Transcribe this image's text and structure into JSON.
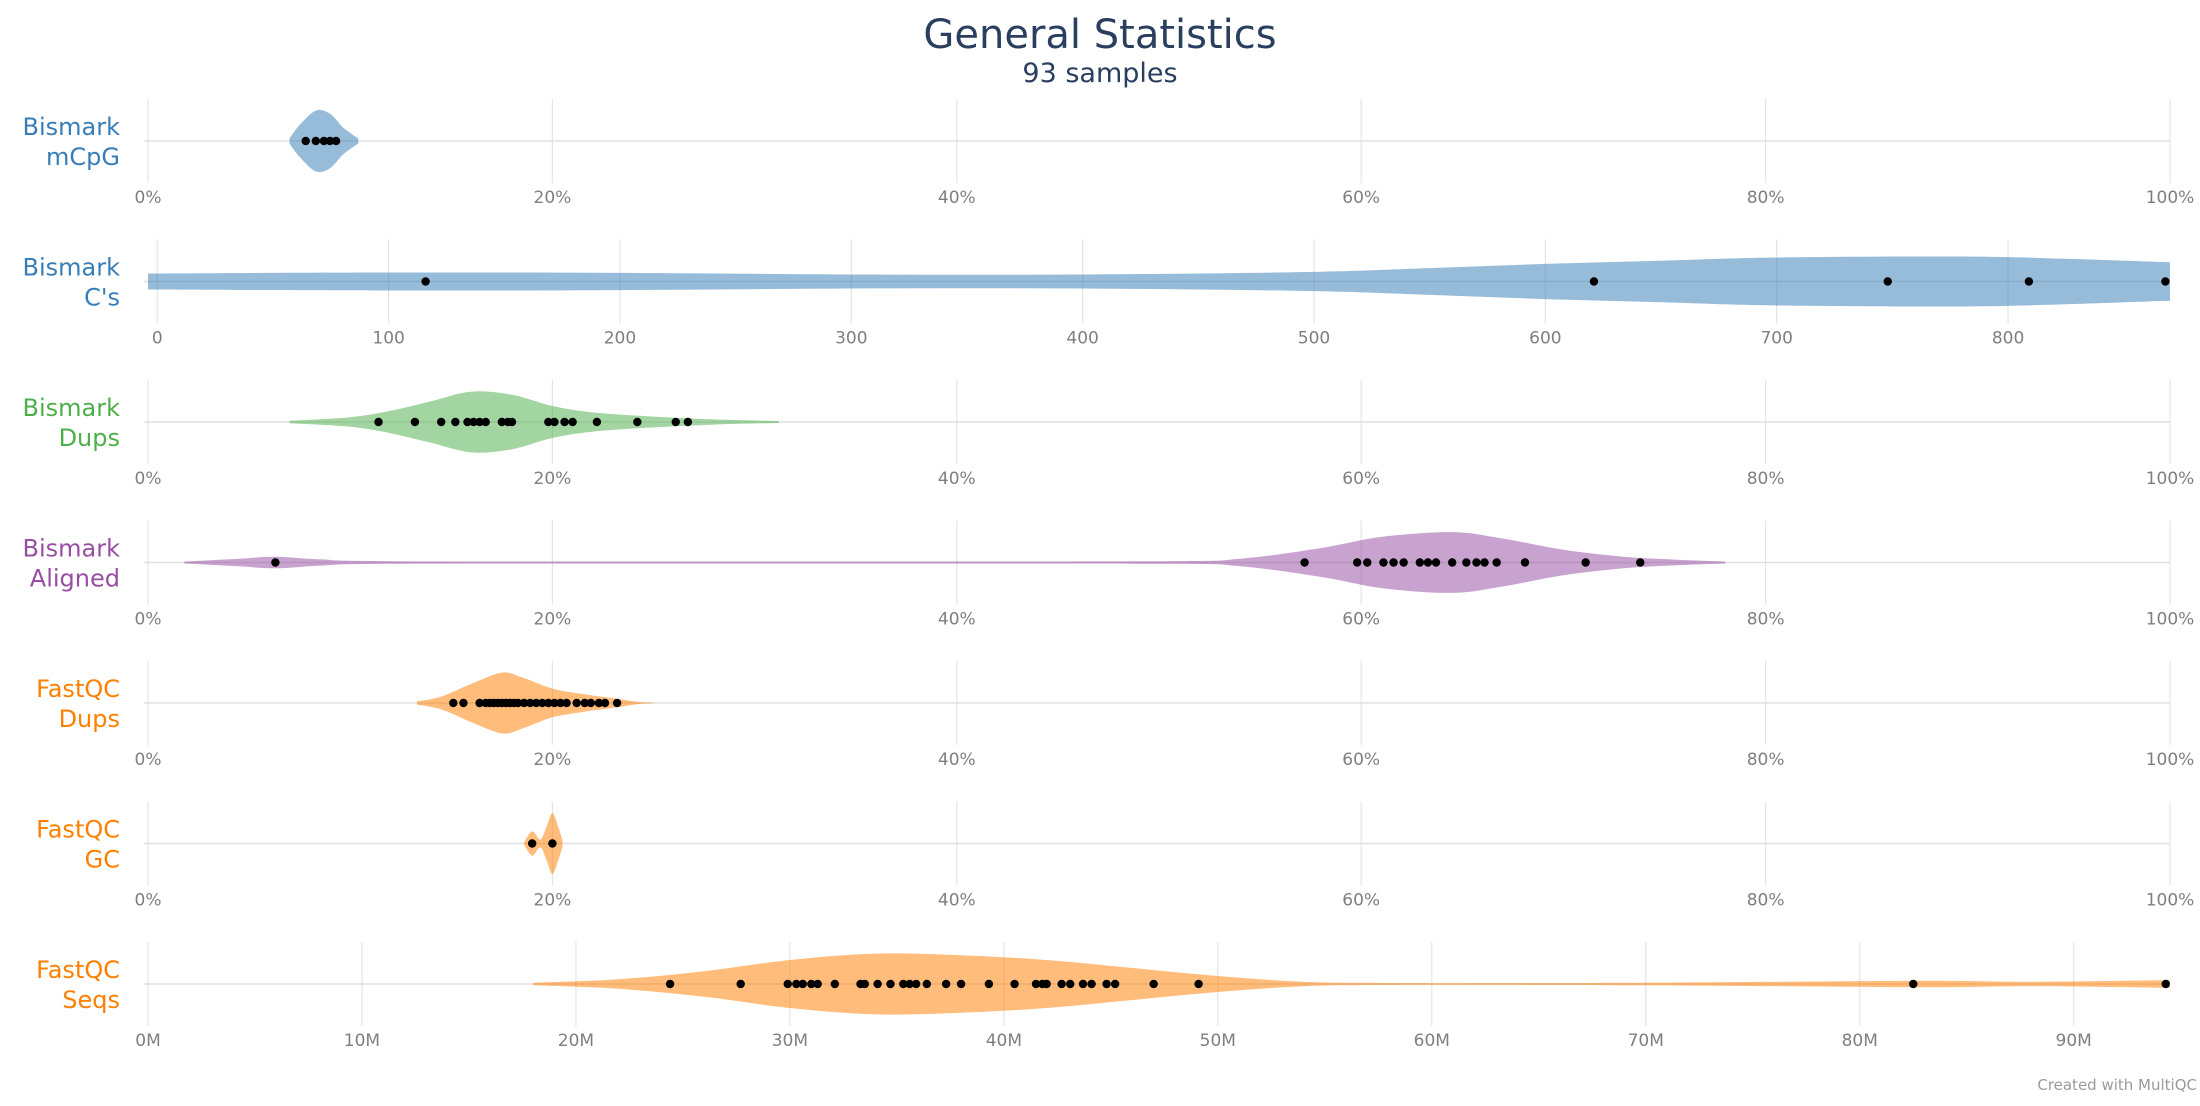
{
  "header": {
    "title": "General Statistics",
    "subtitle": "93 samples"
  },
  "footer": {
    "credit": "Created with MultiQC"
  },
  "colors": {
    "blue": "#377eb8",
    "green": "#4daf4a",
    "purple": "#984ea3",
    "orange": "#ff7f00",
    "text": "#2a3f5f"
  },
  "chart_data": [
    {
      "type": "violin",
      "label": "Bismark mCpG",
      "label_lines": [
        "Bismark",
        "mCpG"
      ],
      "color": "#377eb8",
      "xlim": [
        0,
        100
      ],
      "ticks": [
        0,
        20,
        40,
        60,
        80,
        100
      ],
      "tick_labels": [
        "0%",
        "20%",
        "40%",
        "60%",
        "80%",
        "100%"
      ],
      "points": [
        7.8,
        8.3,
        8.7,
        9.0,
        9.3
      ],
      "density": [
        [
          7.0,
          0.08
        ],
        [
          7.5,
          0.5
        ],
        [
          8.3,
          0.95
        ],
        [
          9.0,
          0.85
        ],
        [
          9.6,
          0.45
        ],
        [
          10.0,
          0.25
        ],
        [
          10.4,
          0.08
        ]
      ]
    },
    {
      "type": "violin",
      "label": "Bismark C's",
      "label_lines": [
        "Bismark",
        "C's"
      ],
      "color": "#377eb8",
      "xlim": [
        -4,
        870
      ],
      "ticks": [
        0,
        100,
        200,
        300,
        400,
        500,
        600,
        700,
        800
      ],
      "tick_labels": [
        "0",
        "100",
        "200",
        "300",
        "400",
        "500",
        "600",
        "700",
        "800"
      ],
      "points": [
        116,
        621,
        748,
        809,
        868
      ],
      "density": [
        [
          -4,
          0.25
        ],
        [
          100,
          0.28
        ],
        [
          200,
          0.27
        ],
        [
          300,
          0.22
        ],
        [
          400,
          0.22
        ],
        [
          500,
          0.3
        ],
        [
          550,
          0.42
        ],
        [
          600,
          0.55
        ],
        [
          650,
          0.65
        ],
        [
          700,
          0.75
        ],
        [
          780,
          0.78
        ],
        [
          830,
          0.7
        ],
        [
          870,
          0.6
        ]
      ]
    },
    {
      "type": "violin",
      "label": "Bismark Dups",
      "label_lines": [
        "Bismark",
        "Dups"
      ],
      "color": "#4daf4a",
      "xlim": [
        0,
        100
      ],
      "ticks": [
        0,
        20,
        40,
        60,
        80,
        100
      ],
      "tick_labels": [
        "0%",
        "20%",
        "40%",
        "60%",
        "80%",
        "100%"
      ],
      "points": [
        11.4,
        13.2,
        14.5,
        15.2,
        15.8,
        16.1,
        16.4,
        16.7,
        17.5,
        17.8,
        18.0,
        19.8,
        20.1,
        20.6,
        21.0,
        22.2,
        24.2,
        26.1,
        26.7
      ],
      "density": [
        [
          7.0,
          0.04
        ],
        [
          10.0,
          0.15
        ],
        [
          12.0,
          0.35
        ],
        [
          14.0,
          0.65
        ],
        [
          16.0,
          0.95
        ],
        [
          18.0,
          0.85
        ],
        [
          20.0,
          0.5
        ],
        [
          22.0,
          0.3
        ],
        [
          25.0,
          0.17
        ],
        [
          28.0,
          0.08
        ],
        [
          31.2,
          0.03
        ]
      ]
    },
    {
      "type": "violin",
      "label": "Bismark Aligned",
      "label_lines": [
        "Bismark",
        "Aligned"
      ],
      "color": "#984ea3",
      "xlim": [
        0,
        100
      ],
      "ticks": [
        0,
        20,
        40,
        60,
        80,
        100
      ],
      "tick_labels": [
        "0%",
        "20%",
        "40%",
        "60%",
        "80%",
        "100%"
      ],
      "points": [
        6.3,
        57.2,
        59.8,
        60.3,
        61.1,
        61.6,
        62.1,
        62.9,
        63.3,
        63.7,
        64.5,
        65.2,
        65.7,
        66.1,
        66.7,
        68.1,
        71.1,
        73.8
      ],
      "density": [
        [
          1.8,
          0.03
        ],
        [
          4.5,
          0.12
        ],
        [
          6.3,
          0.18
        ],
        [
          8.5,
          0.1
        ],
        [
          12.0,
          0.04
        ],
        [
          30.0,
          0.03
        ],
        [
          50.0,
          0.04
        ],
        [
          54.0,
          0.12
        ],
        [
          58.0,
          0.45
        ],
        [
          61.0,
          0.8
        ],
        [
          64.5,
          0.95
        ],
        [
          67.0,
          0.75
        ],
        [
          70.0,
          0.4
        ],
        [
          73.0,
          0.18
        ],
        [
          75.5,
          0.09
        ],
        [
          78.0,
          0.03
        ]
      ]
    },
    {
      "type": "violin",
      "label": "FastQC Dups",
      "label_lines": [
        "FastQC",
        "Dups"
      ],
      "color": "#ff7f00",
      "xlim": [
        0,
        100
      ],
      "ticks": [
        0,
        20,
        40,
        60,
        80,
        100
      ],
      "tick_labels": [
        "0%",
        "20%",
        "40%",
        "60%",
        "80%",
        "100%"
      ],
      "points": [
        15.1,
        15.6,
        16.4,
        16.7,
        16.9,
        17.1,
        17.3,
        17.5,
        17.7,
        17.9,
        18.1,
        18.3,
        18.6,
        18.9,
        19.2,
        19.5,
        19.8,
        20.1,
        20.4,
        20.7,
        21.2,
        21.6,
        21.9,
        22.3,
        22.6,
        23.2
      ],
      "density": [
        [
          13.3,
          0.05
        ],
        [
          14.5,
          0.2
        ],
        [
          16.0,
          0.6
        ],
        [
          17.5,
          0.95
        ],
        [
          18.5,
          0.8
        ],
        [
          20.0,
          0.45
        ],
        [
          21.5,
          0.28
        ],
        [
          23.0,
          0.15
        ],
        [
          24.2,
          0.04
        ],
        [
          25.0,
          0.01
        ]
      ]
    },
    {
      "type": "violin",
      "label": "FastQC GC",
      "label_lines": [
        "FastQC",
        "GC"
      ],
      "color": "#ff7f00",
      "xlim": [
        0,
        100
      ],
      "ticks": [
        0,
        20,
        40,
        60,
        80,
        100
      ],
      "tick_labels": [
        "0%",
        "20%",
        "40%",
        "60%",
        "80%",
        "100%"
      ],
      "points": [
        19.0,
        20.0
      ],
      "density": [
        [
          18.6,
          0.03
        ],
        [
          19.0,
          0.38
        ],
        [
          19.4,
          0.12
        ],
        [
          19.7,
          0.5
        ],
        [
          20.0,
          0.95
        ],
        [
          20.3,
          0.5
        ],
        [
          20.5,
          0.1
        ]
      ]
    },
    {
      "type": "violin",
      "label": "FastQC Seqs",
      "label_lines": [
        "FastQC",
        "Seqs"
      ],
      "color": "#ff7f00",
      "xlim": [
        0,
        94.5
      ],
      "ticks": [
        0,
        10,
        20,
        30,
        40,
        50,
        60,
        70,
        80,
        90
      ],
      "tick_labels": [
        "0M",
        "10M",
        "20M",
        "30M",
        "40M",
        "50M",
        "60M",
        "70M",
        "80M",
        "90M"
      ],
      "points": [
        24.4,
        27.7,
        29.9,
        30.3,
        30.6,
        31.0,
        31.3,
        32.1,
        33.3,
        33.5,
        34.1,
        34.7,
        35.3,
        35.6,
        35.9,
        36.4,
        37.3,
        38.0,
        39.3,
        40.5,
        41.5,
        41.8,
        42.0,
        42.7,
        43.1,
        43.7,
        44.1,
        44.8,
        45.2,
        47.0,
        49.1,
        82.5,
        94.3
      ],
      "density": [
        [
          18.0,
          0.04
        ],
        [
          22.0,
          0.15
        ],
        [
          26.0,
          0.4
        ],
        [
          30.0,
          0.75
        ],
        [
          34.0,
          0.95
        ],
        [
          38.0,
          0.9
        ],
        [
          42.0,
          0.75
        ],
        [
          46.0,
          0.5
        ],
        [
          50.0,
          0.25
        ],
        [
          54.0,
          0.07
        ],
        [
          58.0,
          0.03
        ],
        [
          70.0,
          0.04
        ],
        [
          82.5,
          0.1
        ],
        [
          88.0,
          0.07
        ],
        [
          94.5,
          0.12
        ]
      ]
    }
  ]
}
